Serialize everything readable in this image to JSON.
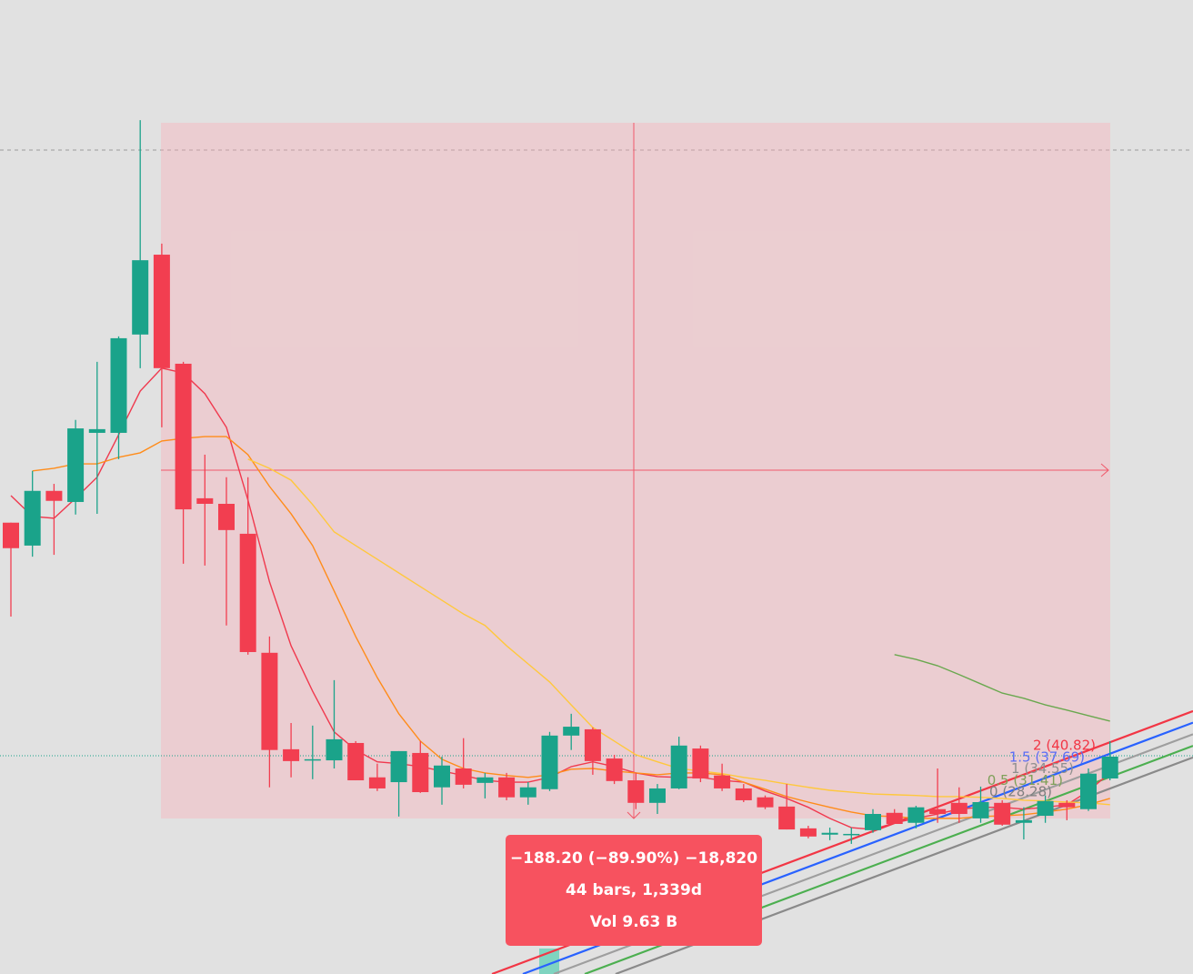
{
  "chart_data": {
    "type": "candlestick",
    "ylim": [
      -20.9,
      242.6
    ],
    "up_color": "#1aa38a",
    "down_color": "#f23e50",
    "open": [
      101.2,
      95.0,
      109.8,
      106.8,
      125.5,
      125.5,
      152.1,
      173.7,
      144.2,
      107.8,
      106.3,
      98.2,
      66.0,
      39.9,
      36.9,
      36.9,
      41.6,
      32.3,
      31.0,
      38.9,
      29.6,
      34.7,
      30.8,
      32.3,
      26.9,
      29.1,
      43.6,
      45.3,
      37.4,
      31.5,
      25.4,
      29.3,
      40.1,
      32.8,
      29.3,
      26.9,
      24.4,
      18.5,
      16.8,
      16.8,
      18.0,
      22.7,
      20.0,
      23.7,
      25.4,
      21.2,
      25.4,
      20.0,
      21.9,
      25.4,
      23.7,
      32.0
    ],
    "high": [
      101.2,
      115.2,
      111.7,
      129.0,
      144.7,
      151.6,
      210.1,
      176.7,
      144.7,
      119.6,
      113.5,
      113.5,
      70.4,
      47.0,
      46.3,
      58.6,
      42.1,
      36.0,
      39.4,
      42.1,
      37.9,
      42.9,
      33.5,
      33.5,
      31.0,
      44.6,
      49.5,
      45.8,
      38.4,
      33.5,
      30.5,
      43.3,
      40.9,
      36.0,
      30.5,
      27.4,
      30.5,
      19.2,
      18.7,
      18.7,
      23.7,
      23.7,
      24.6,
      34.7,
      29.6,
      29.8,
      26.1,
      24.2,
      27.4,
      26.1,
      34.7,
      42.1
    ],
    "low": [
      75.8,
      92.0,
      92.5,
      103.4,
      103.6,
      118.4,
      143.0,
      127.0,
      90.1,
      89.6,
      73.4,
      65.5,
      29.6,
      32.3,
      31.8,
      34.7,
      31.5,
      28.6,
      21.7,
      28.1,
      24.9,
      29.3,
      26.6,
      26.1,
      24.9,
      28.6,
      39.7,
      33.0,
      30.5,
      23.7,
      22.4,
      29.1,
      31.0,
      28.6,
      25.6,
      23.7,
      18.2,
      15.8,
      15.3,
      14.3,
      17.3,
      19.7,
      18.5,
      20.0,
      20.0,
      20.0,
      19.2,
      15.5,
      20.0,
      20.7,
      23.2,
      31.5
    ],
    "close": [
      94.3,
      109.8,
      107.1,
      126.7,
      126.5,
      151.1,
      172.2,
      143.0,
      104.8,
      106.3,
      99.2,
      66.2,
      39.7,
      36.7,
      37.2,
      42.6,
      31.5,
      29.3,
      39.4,
      28.3,
      35.5,
      30.3,
      32.3,
      26.9,
      29.6,
      43.6,
      46.0,
      36.7,
      31.3,
      25.4,
      29.3,
      40.9,
      32.0,
      29.3,
      26.1,
      24.2,
      18.2,
      16.3,
      17.3,
      17.0,
      22.4,
      19.7,
      24.2,
      22.4,
      22.4,
      25.6,
      19.5,
      20.7,
      25.9,
      24.2,
      33.3,
      37.9
    ],
    "lines": [
      {
        "color": "#f0394e",
        "values": [
          108.5,
          102.9,
          102.4,
          107.8,
          113.5,
          125.0,
          136.8,
          143.0,
          141.7,
          136.1,
          127.0,
          107.3,
          85.2,
          67.9,
          55.6,
          44.6,
          39.7,
          36.5,
          36.0,
          35.2,
          34.0,
          32.8,
          31.5,
          31.0,
          31.0,
          32.3,
          35.2,
          36.5,
          35.2,
          33.5,
          32.5,
          32.3,
          32.3,
          31.5,
          31.0,
          28.6,
          26.6,
          24.2,
          21.2,
          18.7,
          18.2,
          20.0,
          21.2,
          22.4,
          23.7,
          24.2,
          24.2,
          23.7,
          24.2,
          24.9,
          28.6,
          33.5
        ]
      },
      {
        "color": "#ff8c1a",
        "values": [
          null,
          115.2,
          115.9,
          117.1,
          117.1,
          118.9,
          120.1,
          123.3,
          124.0,
          124.5,
          124.5,
          119.6,
          111.0,
          103.6,
          95.0,
          82.7,
          70.4,
          59.3,
          49.5,
          42.1,
          37.2,
          34.7,
          33.5,
          32.8,
          32.3,
          33.0,
          34.5,
          34.7,
          34.0,
          33.5,
          33.0,
          33.5,
          33.5,
          33.0,
          31.0,
          29.1,
          27.1,
          25.6,
          24.2,
          22.9,
          21.9,
          21.7,
          21.2,
          21.2,
          21.2,
          21.7,
          21.9,
          22.2,
          22.9,
          23.7,
          24.9,
          26.6
        ]
      },
      {
        "color": "#ffc83d",
        "values": [
          null,
          null,
          null,
          null,
          null,
          null,
          null,
          null,
          null,
          null,
          null,
          118.4,
          115.9,
          112.7,
          106.1,
          98.7,
          95.0,
          91.3,
          87.6,
          83.9,
          80.2,
          76.5,
          73.4,
          67.9,
          63.0,
          58.1,
          51.9,
          45.8,
          42.1,
          38.4,
          36.5,
          34.7,
          34.0,
          33.3,
          32.3,
          31.5,
          30.5,
          29.6,
          28.8,
          28.3,
          27.8,
          27.6,
          27.4,
          27.1,
          27.1,
          26.9,
          26.6,
          26.1,
          25.9,
          25.6,
          25.4,
          24.9
        ]
      },
      {
        "color": "#6aa84f",
        "values": [
          null,
          null,
          null,
          null,
          null,
          null,
          null,
          null,
          null,
          null,
          null,
          null,
          null,
          null,
          null,
          null,
          null,
          null,
          null,
          null,
          null,
          null,
          null,
          null,
          null,
          null,
          null,
          null,
          null,
          null,
          null,
          null,
          null,
          null,
          null,
          null,
          null,
          null,
          null,
          null,
          null,
          65.5,
          64.2,
          62.5,
          60.1,
          57.6,
          55.1,
          53.7,
          51.9,
          50.5,
          49.0,
          47.5
        ]
      }
    ],
    "fib_levels": [
      {
        "label": "2 (40.82)",
        "value": 40.82,
        "color": "#f23645",
        "line_color": "#f23645"
      },
      {
        "label": "1.5 (37.69)",
        "value": 37.69,
        "color": "#5b6ef5",
        "line_color": "#2962ff"
      },
      {
        "label": "1 (34.55)",
        "value": 34.55,
        "color": "#8f8f8f",
        "line_color": "#9e9e9e"
      },
      {
        "label": "0.5 (31.41)",
        "value": 31.41,
        "color": "#7fa05a",
        "line_color": "#4caf50"
      },
      {
        "label": "0 (28.28)",
        "value": 28.28,
        "color": "#808080",
        "line_color": "#8a8a8a"
      }
    ],
    "measurement": [
      "−188.20 (−89.90%) −18,820",
      "44 bars, 1,339d",
      "Vol 9.63 B"
    ]
  }
}
